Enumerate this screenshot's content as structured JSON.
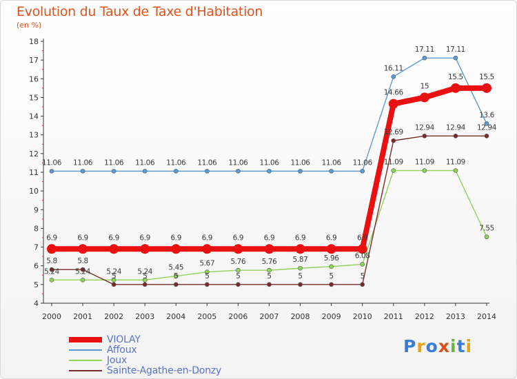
{
  "title": "Evolution du Taux de Taxe d'Habitation",
  "unit_label": "(en %)",
  "logo": {
    "text": "Proxiti",
    "letter_colors": [
      "#3b7dd8",
      "#e8a21a",
      "#3b7dd8",
      "#e04b1a",
      "#6cb33f",
      "#3b7dd8",
      "#e8a21a"
    ]
  },
  "chart_data": {
    "type": "line",
    "title": "Evolution du Taux de Taxe d'Habitation",
    "ylabel": "(en %)",
    "xlabel": "",
    "x": [
      "2000",
      "2001",
      "2002",
      "2003",
      "2004",
      "2005",
      "2006",
      "2007",
      "2008",
      "2009",
      "2010",
      "2011",
      "2012",
      "2013",
      "2014"
    ],
    "ylim": [
      4,
      18
    ],
    "yticks": [
      "4",
      "5",
      "6",
      "7",
      "8",
      "9",
      "10",
      "11",
      "12",
      "13",
      "14",
      "15",
      "16",
      "17",
      "18"
    ],
    "grid": false,
    "legend_position": "bottom-left",
    "series": [
      {
        "name": "VIOLAY",
        "color": "#e81010",
        "emphasis": true,
        "values": [
          6.9,
          6.9,
          6.9,
          6.9,
          6.9,
          6.9,
          6.9,
          6.9,
          6.9,
          6.9,
          6.9,
          14.66,
          15,
          15.5,
          15.5
        ],
        "labels": [
          "6.9",
          "6.9",
          "6.9",
          "6.9",
          "6.9",
          "6.9",
          "6.9",
          "6.9",
          "6.9",
          "6.9",
          "6.9",
          "14.66",
          "15",
          "15.5",
          "15.5"
        ]
      },
      {
        "name": "Affoux",
        "color": "#5b9bd5",
        "emphasis": false,
        "values": [
          11.06,
          11.06,
          11.06,
          11.06,
          11.06,
          11.06,
          11.06,
          11.06,
          11.06,
          11.06,
          11.06,
          16.11,
          17.11,
          17.11,
          13.6
        ],
        "labels": [
          "11.06",
          "11.06",
          "11.06",
          "11.06",
          "11.06",
          "11.06",
          "11.06",
          "11.06",
          "11.06",
          "11.06",
          "11.06",
          "16.11",
          "17.11",
          "17.11",
          "13.6"
        ]
      },
      {
        "name": "Joux",
        "color": "#8fd45a",
        "emphasis": false,
        "values": [
          5.24,
          5.24,
          5.24,
          5.24,
          5.45,
          5.67,
          5.76,
          5.76,
          5.87,
          5.96,
          6.08,
          11.09,
          11.09,
          11.09,
          7.55
        ],
        "labels": [
          "5.24",
          "5.24",
          "5.24",
          "5.24",
          "5.45",
          "5.67",
          "5.76",
          "5.76",
          "5.87",
          "5.96",
          "6.08",
          "11.09",
          "11.09",
          "11.09",
          "7.55"
        ]
      },
      {
        "name": "Sainte-Agathe-en-Donzy",
        "color": "#7a2a2a",
        "emphasis": false,
        "values": [
          5.8,
          5.8,
          5,
          5,
          5,
          5,
          5,
          5,
          5,
          5,
          5,
          12.69,
          12.94,
          12.94,
          12.94
        ],
        "labels": [
          "5.8",
          "5.8",
          "5",
          "5",
          "5",
          "5",
          "5",
          "5",
          "5",
          "5",
          "5",
          "12.69",
          "12.94",
          "12.94",
          "12.94"
        ]
      }
    ]
  }
}
